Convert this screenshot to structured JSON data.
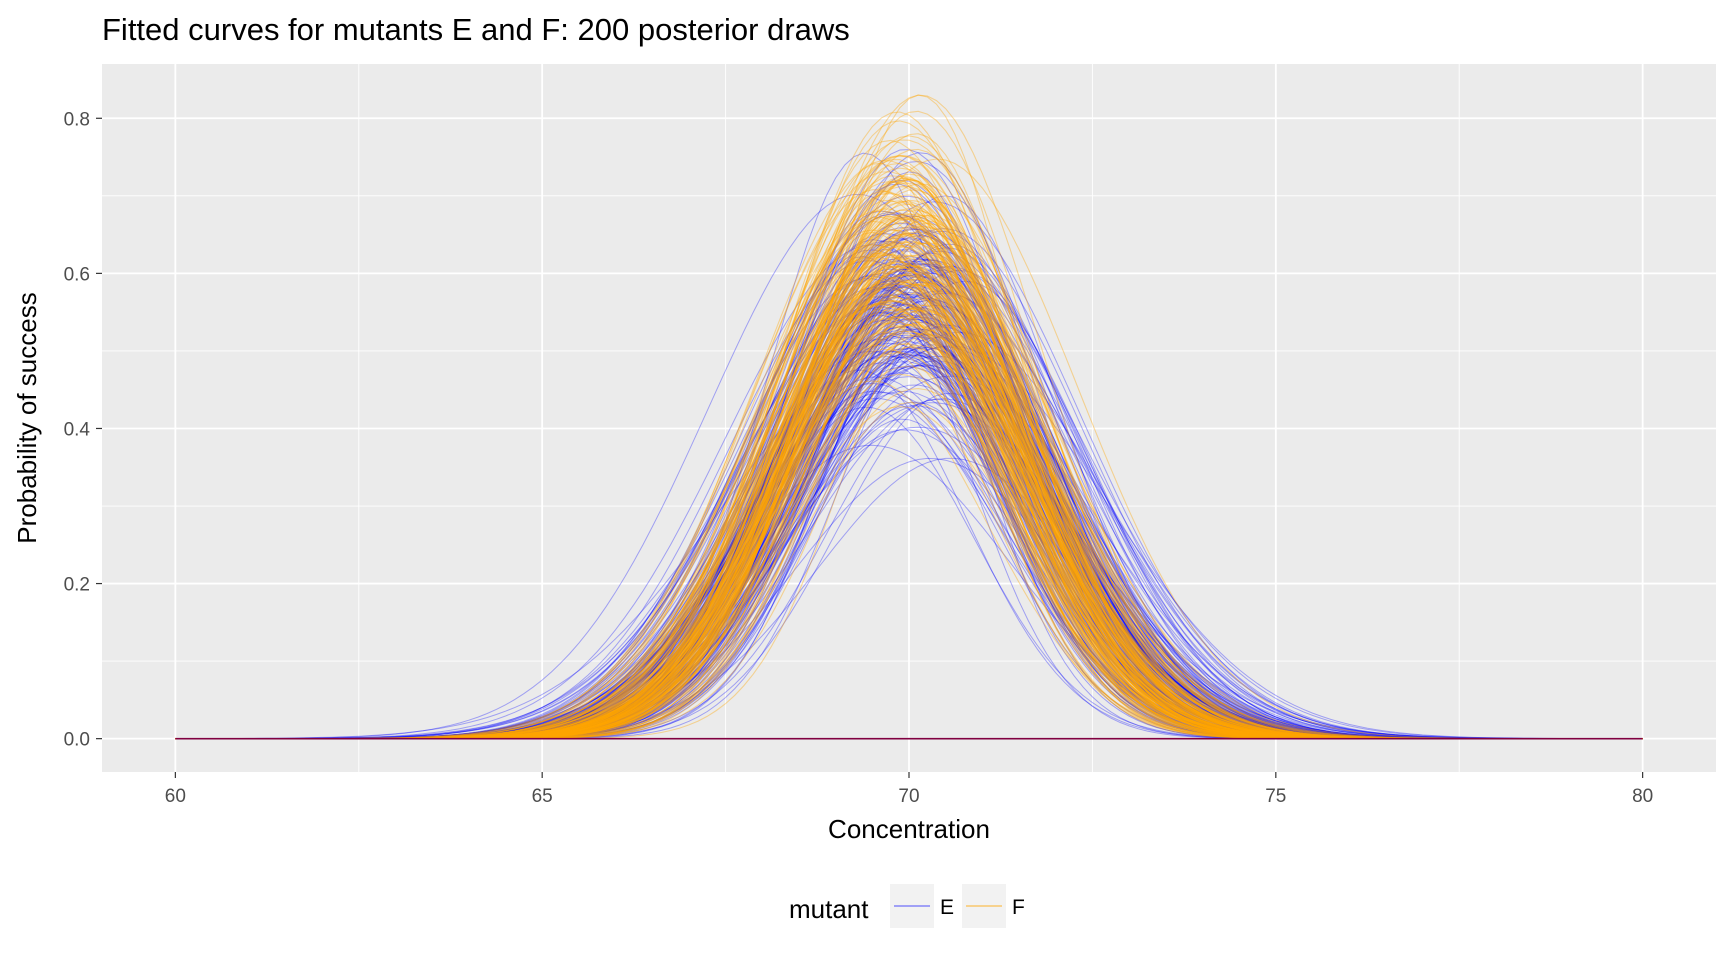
{
  "chart_data": {
    "type": "line",
    "title": "Fitted curves for mutants E and F: 200 posterior draws",
    "xlabel": "Concentration",
    "ylabel": "Probability of success",
    "xlim": [
      59,
      81
    ],
    "ylim": [
      -0.043,
      0.87
    ],
    "x_ticks": [
      60,
      65,
      70,
      75,
      80
    ],
    "x_tick_labels": [
      "60",
      "65",
      "70",
      "75",
      "80"
    ],
    "y_ticks": [
      0.0,
      0.2,
      0.4,
      0.6,
      0.8
    ],
    "y_tick_labels": [
      "0.0",
      "0.2",
      "0.4",
      "0.6",
      "0.8"
    ],
    "x_range": [
      60,
      80
    ],
    "grid": true,
    "panel_background": "#ebebeb",
    "legend": {
      "title": "mutant",
      "position": "bottom",
      "entries": [
        {
          "label": "E",
          "color": "#0000ff"
        },
        {
          "label": "F",
          "color": "#ffa500"
        }
      ]
    },
    "series": [
      {
        "name": "E",
        "color": "#0000ff",
        "draws": 200,
        "curve_form": "peak * exp(-(x - center)^2 / (2 * sd^2))",
        "representative": {
          "peak": 0.56,
          "center": 70.0,
          "sd": 1.7
        },
        "peak_range": [
          0.35,
          0.76
        ],
        "center_range": [
          69.3,
          70.8
        ],
        "sd_range": [
          1.35,
          2.35
        ]
      },
      {
        "name": "F",
        "color": "#ffa500",
        "draws": 200,
        "curve_form": "peak * exp(-(x - center)^2 / (2 * sd^2))",
        "representative": {
          "peak": 0.62,
          "center": 69.9,
          "sd": 1.6
        },
        "peak_range": [
          0.42,
          0.83
        ],
        "center_range": [
          69.5,
          70.5
        ],
        "sd_range": [
          1.3,
          1.95
        ]
      }
    ]
  }
}
